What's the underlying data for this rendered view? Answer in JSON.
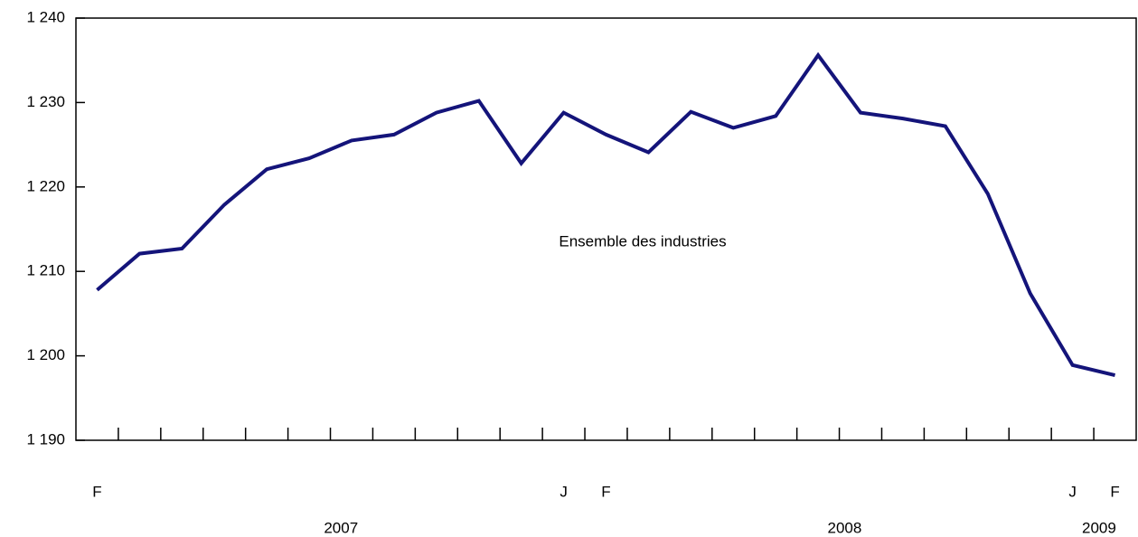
{
  "chart_data": {
    "type": "line",
    "annotation": "Ensemble des industries",
    "categories": [
      "F",
      null,
      null,
      null,
      null,
      null,
      null,
      null,
      null,
      null,
      null,
      "J",
      "F",
      null,
      null,
      null,
      null,
      null,
      null,
      null,
      null,
      null,
      null,
      "J",
      "F"
    ],
    "year_labels": [
      "2007",
      "2008",
      "2009"
    ],
    "series": [
      {
        "name": "Ensemble des industries",
        "color": "#14147a",
        "values": [
          1207.8,
          1212.1,
          1212.7,
          1217.9,
          1222.1,
          1223.4,
          1225.5,
          1226.2,
          1228.8,
          1230.2,
          1222.8,
          1228.8,
          1226.2,
          1224.1,
          1228.9,
          1227.0,
          1228.4,
          1235.6,
          1228.8,
          1228.1,
          1227.2,
          1219.2,
          1207.4,
          1198.9,
          1197.7
        ]
      }
    ],
    "ylim": [
      1190,
      1240
    ],
    "yticks": [
      {
        "value": 1190,
        "label": "1 190"
      },
      {
        "value": 1200,
        "label": "1 200"
      },
      {
        "value": 1210,
        "label": "1 210"
      },
      {
        "value": 1220,
        "label": "1 220"
      },
      {
        "value": 1230,
        "label": "1 230"
      },
      {
        "value": 1240,
        "label": "1 240"
      }
    ],
    "grid": false
  }
}
